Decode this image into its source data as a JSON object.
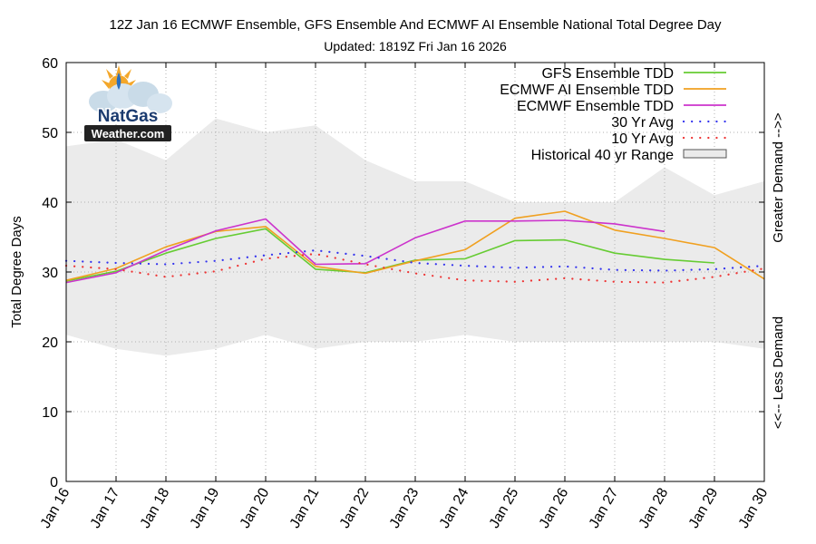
{
  "chart_data": {
    "type": "line",
    "title": "12Z Jan 16 ECMWF Ensemble, GFS Ensemble And ECMWF AI Ensemble National Total Degree Day",
    "subtitle": "Updated: 1819Z Fri Jan 16 2026",
    "ylabel": "Total Degree Days",
    "right_label_top": "Greater Demand -->>",
    "right_label_bottom": "<<-- Less Demand",
    "ylim": [
      0,
      60
    ],
    "yticks": [
      0,
      10,
      20,
      30,
      40,
      50,
      60
    ],
    "grid": true,
    "legend_position": "top-right",
    "logo": {
      "line1": "NatGas",
      "line2": "Weather.com"
    },
    "categories": [
      "Jan 16",
      "Jan 17",
      "Jan 18",
      "Jan 19",
      "Jan 20",
      "Jan 21",
      "Jan 22",
      "Jan 23",
      "Jan 24",
      "Jan 25",
      "Jan 26",
      "Jan 27",
      "Jan 28",
      "Jan 29",
      "Jan 30"
    ],
    "historical_range": {
      "name": "Historical 40 yr Range",
      "color": "#ebebeb",
      "x": [
        0,
        0.5,
        1,
        2,
        3,
        4,
        5,
        6,
        7,
        8,
        9,
        10,
        11,
        12,
        13,
        14
      ],
      "low": [
        21,
        20,
        19,
        18,
        19,
        21,
        19,
        20,
        20,
        21,
        20,
        20,
        20,
        20,
        20,
        19
      ],
      "high": [
        48,
        48.5,
        49,
        46,
        52,
        50,
        51,
        46,
        43,
        43,
        40,
        40,
        40,
        45,
        41,
        43
      ]
    },
    "series": [
      {
        "name": "GFS Ensemble TDD",
        "color": "#66cc33",
        "style": "solid",
        "values": [
          28.7,
          30.1,
          32.7,
          34.8,
          36.2,
          30.4,
          29.9,
          31.7,
          31.9,
          34.5,
          34.6,
          32.7,
          31.8,
          31.3,
          null
        ]
      },
      {
        "name": "ECMWF AI Ensemble TDD",
        "color": "#f0a020",
        "style": "solid",
        "values": [
          28.8,
          30.5,
          33.6,
          35.8,
          36.5,
          30.8,
          29.8,
          31.6,
          33.2,
          37.7,
          38.7,
          36.0,
          34.8,
          33.5,
          29.0
        ]
      },
      {
        "name": "ECMWF Ensemble TDD",
        "color": "#cc33cc",
        "style": "solid",
        "values": [
          28.5,
          29.9,
          33.1,
          35.9,
          37.6,
          31.1,
          31.2,
          34.9,
          37.3,
          37.3,
          37.4,
          36.9,
          35.8,
          null,
          null
        ]
      },
      {
        "name": "30 Yr Avg",
        "color": "#3333ee",
        "style": "dotted",
        "values": [
          31.6,
          31.3,
          31.1,
          31.6,
          32.4,
          33.1,
          32.3,
          31.3,
          30.9,
          30.6,
          30.8,
          30.3,
          30.2,
          30.4,
          30.9
        ]
      },
      {
        "name": "10 Yr Avg",
        "color": "#ee3333",
        "style": "dotted",
        "values": [
          30.9,
          30.4,
          29.3,
          30.1,
          31.9,
          32.6,
          31.1,
          29.8,
          28.8,
          28.6,
          29.1,
          28.6,
          28.5,
          29.3,
          30.5
        ]
      }
    ]
  }
}
